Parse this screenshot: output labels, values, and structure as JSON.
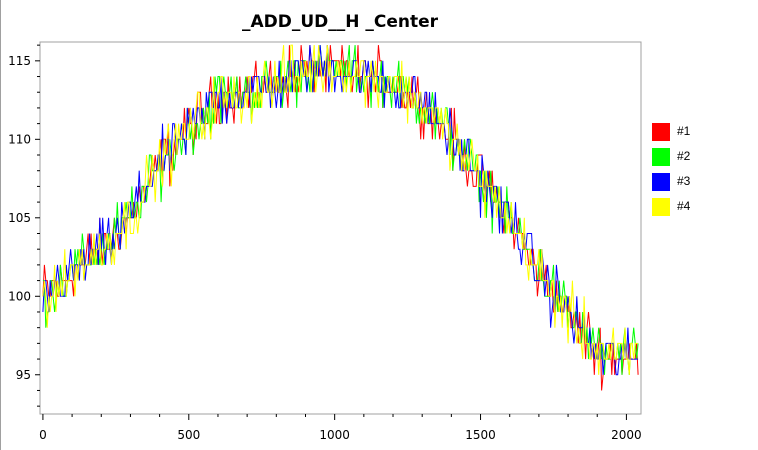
{
  "chart_data": {
    "type": "line",
    "title": "_ADD_UD__H _Center",
    "xlabel": "",
    "ylabel": "",
    "xlim": [
      -10,
      2050
    ],
    "ylim": [
      92.5,
      116.2
    ],
    "x_ticks": [
      0,
      500,
      1000,
      1500,
      2000
    ],
    "y_ticks": [
      95,
      100,
      105,
      110,
      115
    ],
    "grid": false,
    "legend_position": "right",
    "series": [
      {
        "name": "#1",
        "color": "#ff0000"
      },
      {
        "name": "#2",
        "color": "#00ff00"
      },
      {
        "name": "#3",
        "color": "#0000ff"
      },
      {
        "name": "#4",
        "color": "#ffff00"
      }
    ],
    "trend": {
      "x": [
        0,
        100,
        200,
        300,
        400,
        500,
        600,
        700,
        800,
        900,
        1000,
        1100,
        1200,
        1300,
        1400,
        1500,
        1600,
        1700,
        1800,
        1900,
        2000,
        2040
      ],
      "y": [
        100,
        101.5,
        103,
        105,
        108.5,
        110.5,
        112.5,
        113,
        113.5,
        114.5,
        114.5,
        114,
        113.5,
        112.5,
        110,
        107.5,
        105,
        101.5,
        99,
        96.5,
        96,
        96
      ],
      "noise": 1.4,
      "step": 5
    }
  }
}
